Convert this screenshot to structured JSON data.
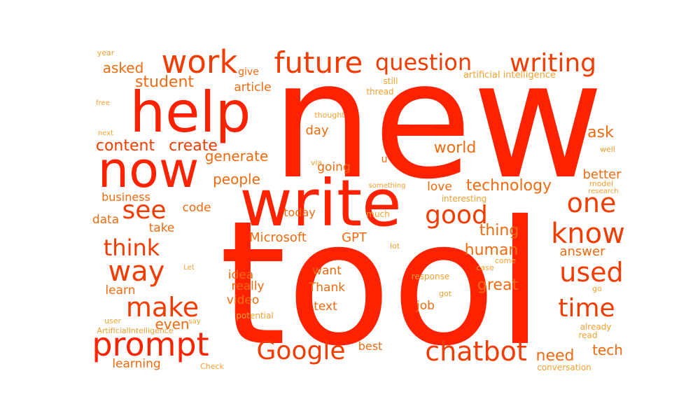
{
  "colors": {
    "red": "#ff2200",
    "orange_red": "#f23c00",
    "orange": "#f06a10",
    "light_orange": "#f5a030"
  },
  "words": [
    {
      "text": "new"
    },
    {
      "text": "tool"
    },
    {
      "text": "write"
    },
    {
      "text": "now"
    },
    {
      "text": "help"
    },
    {
      "text": "prompt"
    },
    {
      "text": "work"
    },
    {
      "text": "future"
    },
    {
      "text": "question"
    },
    {
      "text": "writing"
    },
    {
      "text": "Google"
    },
    {
      "text": "chatbot"
    },
    {
      "text": "know"
    },
    {
      "text": "one"
    },
    {
      "text": "used"
    },
    {
      "text": "time"
    },
    {
      "text": "make"
    },
    {
      "text": "way"
    },
    {
      "text": "see"
    },
    {
      "text": "think"
    },
    {
      "text": "good"
    },
    {
      "text": "content"
    },
    {
      "text": "create"
    },
    {
      "text": "student"
    },
    {
      "text": "asked"
    },
    {
      "text": "article"
    },
    {
      "text": "give"
    },
    {
      "text": "year"
    },
    {
      "text": "artificial intelligence"
    },
    {
      "text": "still"
    },
    {
      "text": "thread"
    },
    {
      "text": "free"
    },
    {
      "text": "thought"
    },
    {
      "text": "next"
    },
    {
      "text": "via"
    },
    {
      "text": "day"
    },
    {
      "text": "world"
    },
    {
      "text": "ask"
    },
    {
      "text": "well"
    },
    {
      "text": "generate"
    },
    {
      "text": "going"
    },
    {
      "text": "u"
    },
    {
      "text": "better"
    },
    {
      "text": "people"
    },
    {
      "text": "something"
    },
    {
      "text": "love"
    },
    {
      "text": "technology"
    },
    {
      "text": "model"
    },
    {
      "text": "research"
    },
    {
      "text": "business"
    },
    {
      "text": "code"
    },
    {
      "text": "interesting"
    },
    {
      "text": "data"
    },
    {
      "text": "today"
    },
    {
      "text": "much"
    },
    {
      "text": "take"
    },
    {
      "text": "thing"
    },
    {
      "text": "Microsoft"
    },
    {
      "text": "GPT"
    },
    {
      "text": "lot"
    },
    {
      "text": "human"
    },
    {
      "text": "answer"
    },
    {
      "text": "Let"
    },
    {
      "text": "idea"
    },
    {
      "text": "want"
    },
    {
      "text": "come"
    },
    {
      "text": "case"
    },
    {
      "text": "response"
    },
    {
      "text": "great"
    },
    {
      "text": "really"
    },
    {
      "text": "Thank"
    },
    {
      "text": "go"
    },
    {
      "text": "learn"
    },
    {
      "text": "got"
    },
    {
      "text": "video"
    },
    {
      "text": "job"
    },
    {
      "text": "even"
    },
    {
      "text": "text"
    },
    {
      "text": "potential"
    },
    {
      "text": "user"
    },
    {
      "text": "say"
    },
    {
      "text": "ArtificialIntelligence"
    },
    {
      "text": "already"
    },
    {
      "text": "read"
    },
    {
      "text": "best"
    },
    {
      "text": "tech"
    },
    {
      "text": "need"
    },
    {
      "text": "learning"
    },
    {
      "text": "Check"
    },
    {
      "text": "conversation"
    }
  ]
}
